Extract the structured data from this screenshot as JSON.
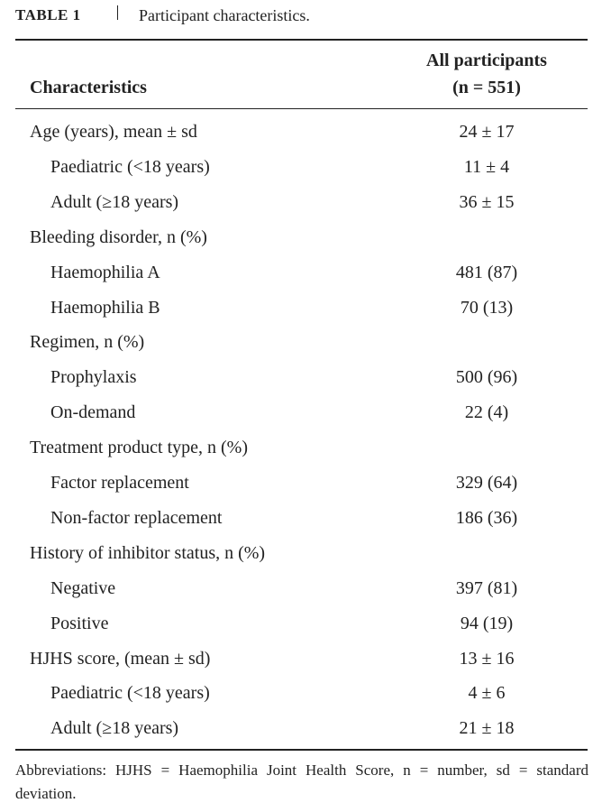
{
  "header": {
    "label": "TABLE 1",
    "title": "Participant characteristics."
  },
  "table": {
    "columns": [
      "Characteristics",
      "All participants",
      "(n = 551)"
    ],
    "sections": [
      {
        "label": "Age (years), mean ± sd",
        "value": "24 ± 17",
        "items": [
          {
            "label": "Paediatric (<18 years)",
            "value": "11 ± 4"
          },
          {
            "label": "Adult (≥18 years)",
            "value": "36 ± 15"
          }
        ]
      },
      {
        "label": "Bleeding disorder, n (%)",
        "items": [
          {
            "label": "Haemophilia A",
            "value": "481 (87)"
          },
          {
            "label": "Haemophilia B",
            "value": "70 (13)"
          }
        ]
      },
      {
        "label": "Regimen, n (%)",
        "items": [
          {
            "label": "Prophylaxis",
            "value": "500 (96)"
          },
          {
            "label": "On-demand",
            "value": "22 (4)"
          }
        ]
      },
      {
        "label": "Treatment product type, n (%)",
        "items": [
          {
            "label": "Factor replacement",
            "value": "329 (64)"
          },
          {
            "label": "Non-factor replacement",
            "value": "186 (36)"
          }
        ]
      },
      {
        "label": "History of inhibitor status, n (%)",
        "items": [
          {
            "label": "Negative",
            "value": "397 (81)"
          },
          {
            "label": "Positive",
            "value": "94 (19)"
          }
        ]
      },
      {
        "label": "HJHS score, (mean ± sd)",
        "value": "13 ± 16",
        "items": [
          {
            "label": "Paediatric (<18 years)",
            "value": "4 ± 6"
          },
          {
            "label": "Adult (≥18 years)",
            "value": "21 ± 18"
          }
        ]
      }
    ]
  },
  "footnote": "Abbreviations: HJHS = Haemophilia Joint Health Score, n = number, sd = standard deviation."
}
